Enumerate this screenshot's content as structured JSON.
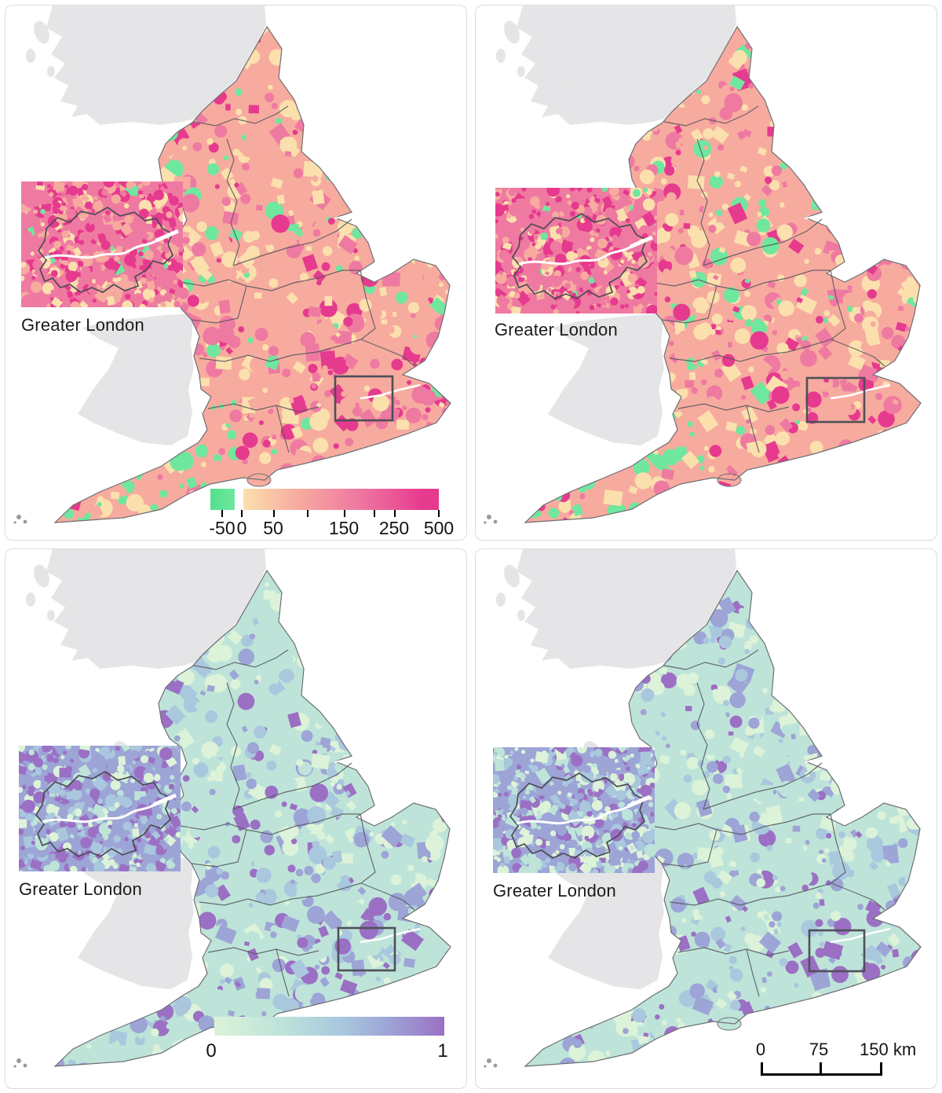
{
  "panels": [
    {
      "id": "excess-map-a",
      "inset_label": "Greater London",
      "legend": {
        "tick_labels": [
          "-50",
          "0",
          "50",
          "150",
          "250",
          "500"
        ]
      }
    },
    {
      "id": "excess-map-b",
      "inset_label": "Greater London"
    },
    {
      "id": "probability-map-a",
      "inset_label": "Greater London",
      "legend": {
        "tick_labels": [
          "0",
          "1"
        ]
      }
    },
    {
      "id": "probability-map-b",
      "inset_label": "Greater London",
      "scalebar": {
        "tick_labels": [
          "0",
          "75",
          "150 km"
        ]
      }
    }
  ],
  "palettes": {
    "top_scale": {
      "green": "#6fe79e",
      "green_dark": "#53e08d",
      "cream": "#fbe0ad",
      "salmon": "#f7ab9f",
      "pink": "#ef7aa1",
      "magenta": "#e63a8e"
    },
    "bottom_scale": {
      "mint": "#dcf3d9",
      "aqua": "#bee4d9",
      "blue": "#a9c8de",
      "lavender": "#9da4d6",
      "purple": "#9b70c4"
    },
    "inactive_region": "#e5e5e7",
    "coast_line": "#6e6e74",
    "boundary_line": "#54545c",
    "locator_box": "#4f4f57",
    "river": "#ffffff",
    "text": "#1b1b1b"
  }
}
